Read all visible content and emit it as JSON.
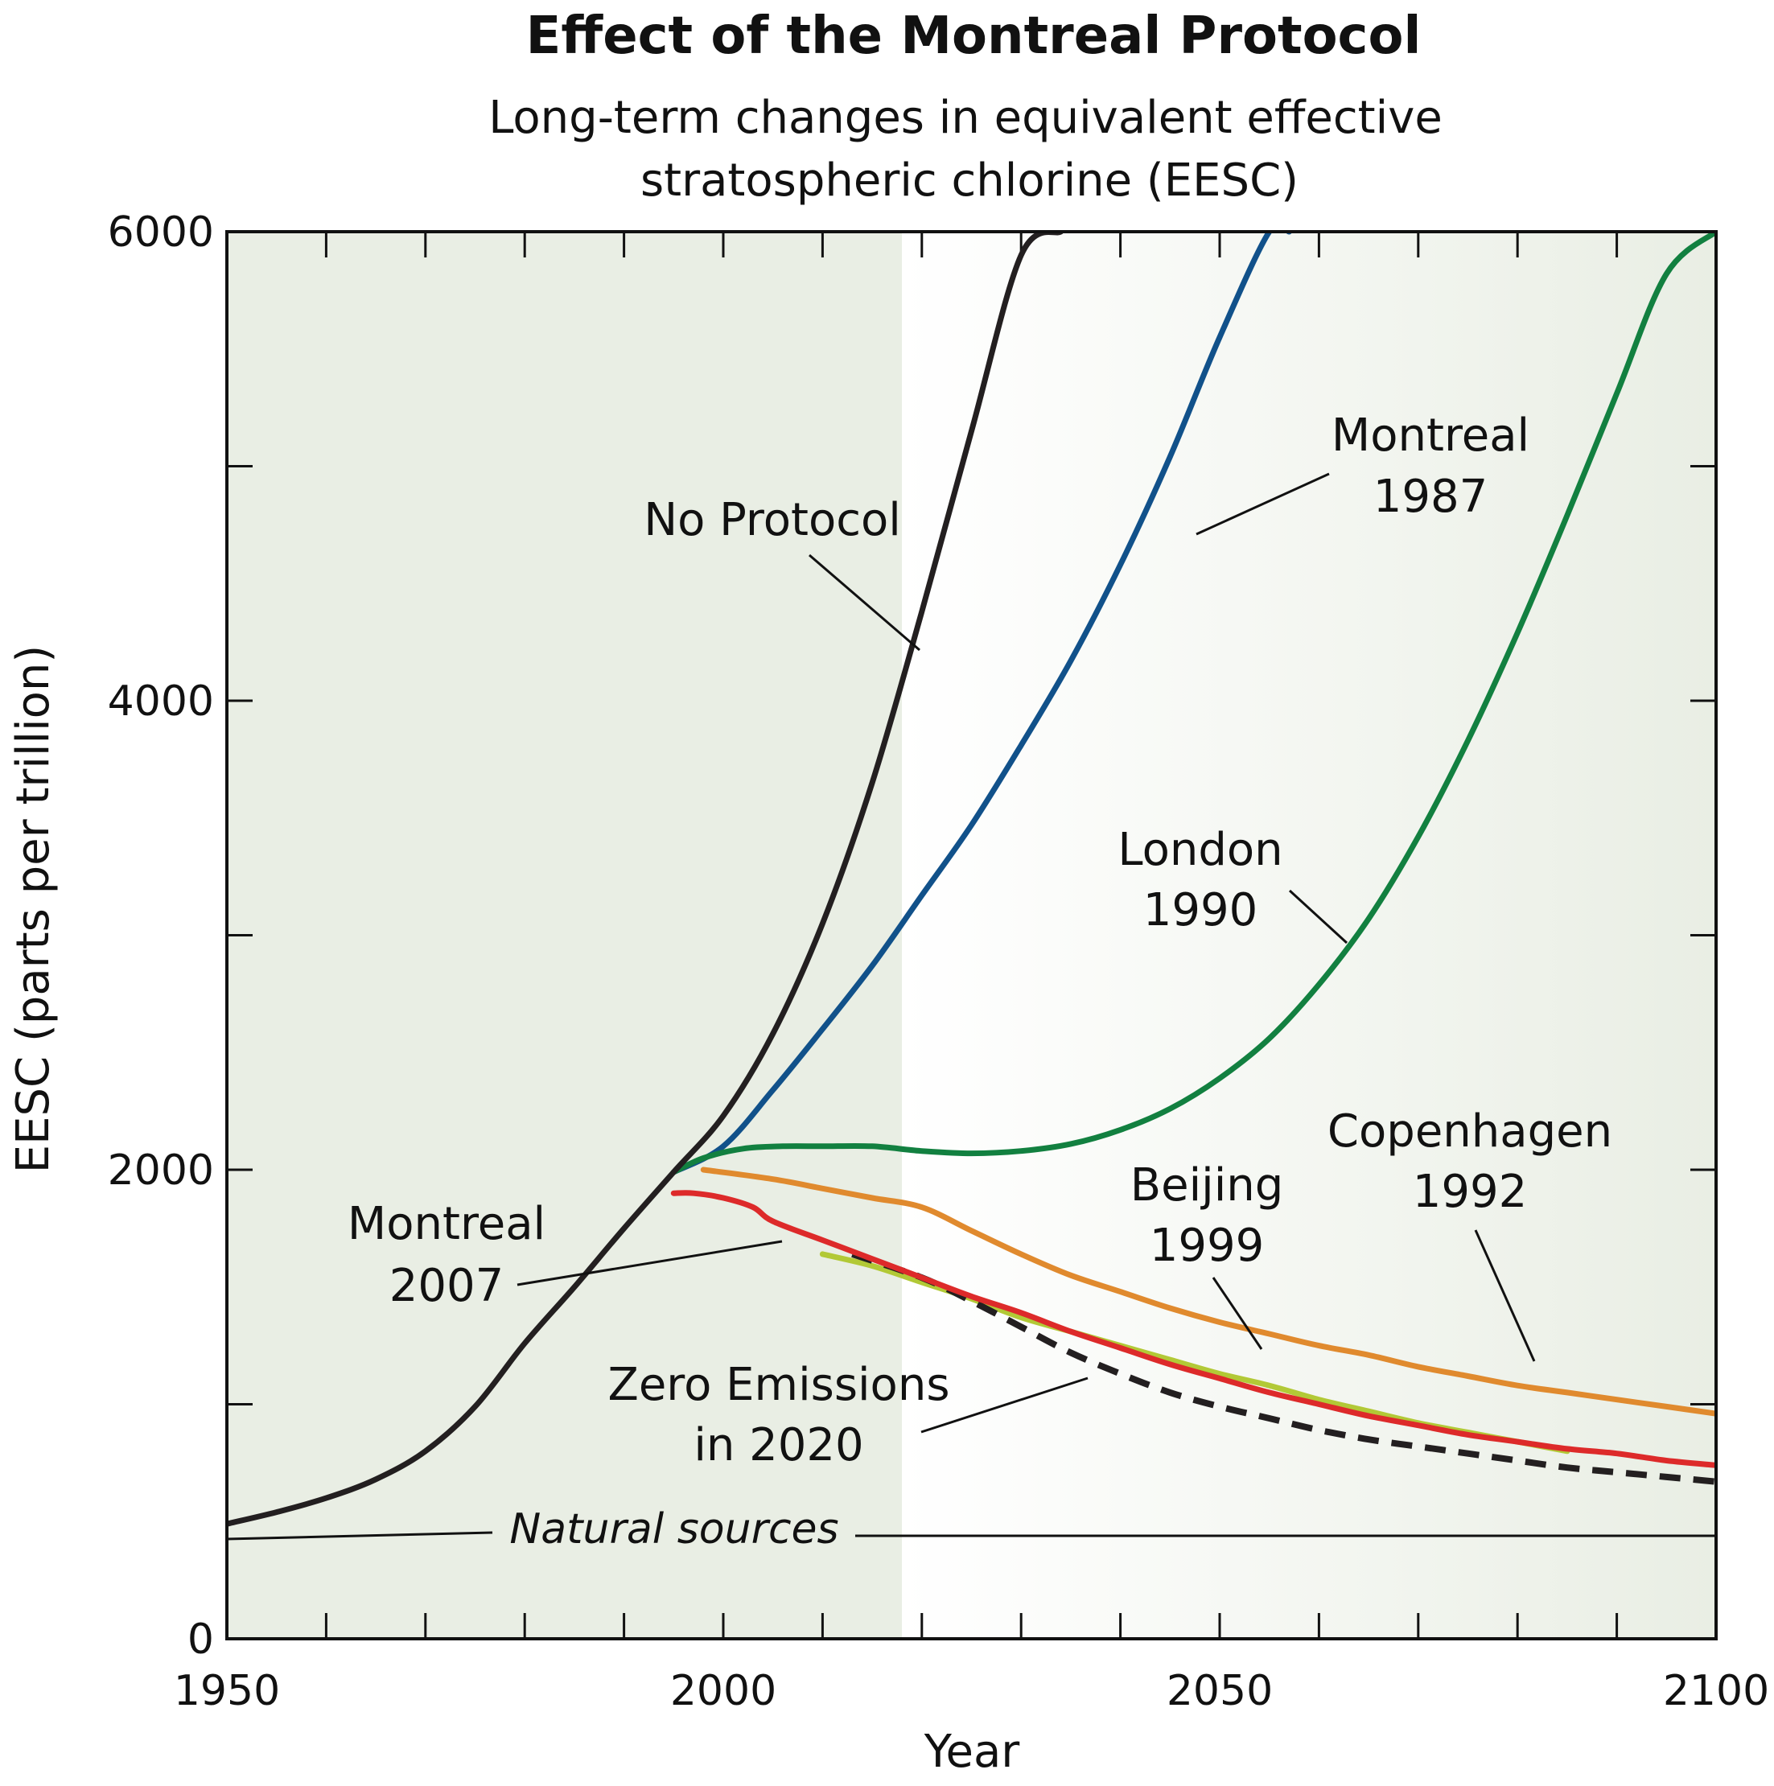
{
  "chart_data": {
    "type": "line",
    "title": "Effect of the Montreal Protocol",
    "subtitle_lines": [
      "Long-term changes in equivalent effective",
      "stratospheric chlorine (EESC)"
    ],
    "xlabel": "Year",
    "ylabel": "EESC (parts per trillion)",
    "xlim": [
      1950,
      2100
    ],
    "ylim": [
      0,
      6000
    ],
    "x_tick_labels": [
      "1950",
      "2000",
      "2050",
      "2100"
    ],
    "y_tick_labels": [
      "0",
      "2000",
      "4000",
      "6000"
    ],
    "x_minor_step": 10,
    "y_minor_step": 1000,
    "grid": false,
    "shading": {
      "observed_until": 2018,
      "color": "#e9eee4"
    },
    "series": [
      {
        "name": "No Protocol",
        "color": "#231f20",
        "width": 7,
        "x": [
          1950,
          1955,
          1960,
          1965,
          1970,
          1975,
          1980,
          1985,
          1990,
          1995,
          2000,
          2005,
          2010,
          2015,
          2020,
          2025,
          2030,
          2034
        ],
        "y": [
          490,
          540,
          600,
          680,
          800,
          990,
          1260,
          1500,
          1750,
          1990,
          2230,
          2580,
          3050,
          3650,
          4380,
          5150,
          5900,
          6000
        ]
      },
      {
        "name": "Montreal 1987",
        "color": "#11518a",
        "width": 7,
        "x": [
          1995,
          2000,
          2005,
          2010,
          2015,
          2020,
          2025,
          2030,
          2035,
          2040,
          2045,
          2050,
          2055,
          2057
        ],
        "y": [
          1990,
          2100,
          2340,
          2600,
          2870,
          3170,
          3470,
          3810,
          4170,
          4580,
          5040,
          5550,
          6000,
          6000
        ]
      },
      {
        "name": "London 1990",
        "color": "#128040",
        "width": 7,
        "x": [
          1995,
          1998,
          2002,
          2006,
          2010,
          2015,
          2020,
          2025,
          2030,
          2035,
          2040,
          2045,
          2050,
          2055,
          2060,
          2065,
          2070,
          2075,
          2080,
          2085,
          2090,
          2095,
          2100
        ],
        "y": [
          1990,
          2050,
          2090,
          2100,
          2100,
          2100,
          2080,
          2070,
          2080,
          2110,
          2170,
          2260,
          2390,
          2560,
          2790,
          3070,
          3420,
          3830,
          4290,
          4790,
          5310,
          5820,
          6000
        ]
      },
      {
        "name": "Copenhagen 1992",
        "color": "#e08a2e",
        "width": 7,
        "x": [
          1998,
          2005,
          2010,
          2015,
          2020,
          2025,
          2030,
          2035,
          2040,
          2045,
          2050,
          2055,
          2060,
          2065,
          2070,
          2075,
          2080,
          2085,
          2090,
          2095,
          2100
        ],
        "y": [
          2000,
          1960,
          1920,
          1880,
          1840,
          1740,
          1640,
          1550,
          1480,
          1410,
          1350,
          1300,
          1250,
          1210,
          1160,
          1120,
          1080,
          1050,
          1020,
          990,
          960
        ]
      },
      {
        "name": "Beijing 1999",
        "color": "#b2c936",
        "width": 7,
        "x": [
          2010,
          2015,
          2020,
          2025,
          2030,
          2035,
          2040,
          2045,
          2050,
          2055,
          2060,
          2065,
          2070,
          2075,
          2080,
          2085
        ],
        "y": [
          1640,
          1590,
          1520,
          1450,
          1370,
          1310,
          1250,
          1190,
          1130,
          1080,
          1020,
          970,
          920,
          880,
          840,
          800
        ]
      },
      {
        "name": "Montreal 2007",
        "color": "#dd2a2a",
        "width": 7,
        "x": [
          1995,
          1997,
          2000,
          2003,
          2005,
          2010,
          2015,
          2020,
          2025,
          2030,
          2035,
          2040,
          2045,
          2050,
          2055,
          2060,
          2065,
          2070,
          2075,
          2080,
          2085,
          2090,
          2095,
          2100
        ],
        "y": [
          1900,
          1900,
          1880,
          1840,
          1780,
          1700,
          1620,
          1540,
          1460,
          1390,
          1310,
          1240,
          1170,
          1110,
          1050,
          1000,
          950,
          910,
          870,
          840,
          810,
          790,
          760,
          740
        ]
      },
      {
        "name": "Zero Emissions in 2020",
        "color": "#231f20",
        "width": 8,
        "dashed": true,
        "x": [
          2013,
          2020,
          2025,
          2030,
          2035,
          2040,
          2045,
          2050,
          2055,
          2060,
          2065,
          2070,
          2075,
          2080,
          2085,
          2090,
          2095,
          2100
        ],
        "y": [
          1640,
          1540,
          1440,
          1330,
          1220,
          1130,
          1050,
          990,
          940,
          890,
          850,
          820,
          790,
          760,
          730,
          710,
          690,
          670
        ]
      },
      {
        "name": "Natural sources",
        "color": "#231f20",
        "width": 3,
        "x": [
          1950,
          1960,
          1970,
          1975,
          1980,
          2030,
          2060,
          2100
        ],
        "y": [
          410,
          420,
          440,
          445,
          445,
          445,
          445,
          445
        ]
      }
    ],
    "annotations": {
      "no_protocol": "No Protocol",
      "montreal_1987": [
        "Montreal",
        "1987"
      ],
      "london_1990": [
        "London",
        "1990"
      ],
      "copenhagen_1992": [
        "Copenhagen",
        "1992"
      ],
      "beijing_1999": [
        "Beijing",
        "1999"
      ],
      "montreal_2007": [
        "Montreal",
        "2007"
      ],
      "zero_emissions": [
        "Zero Emissions",
        "in 2020"
      ],
      "natural_sources": "Natural sources"
    }
  }
}
